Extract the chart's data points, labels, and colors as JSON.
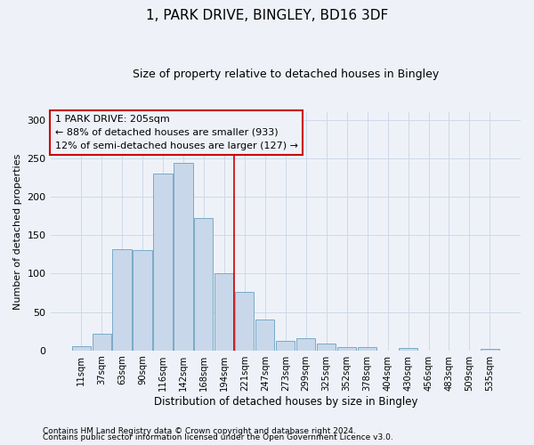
{
  "title": "1, PARK DRIVE, BINGLEY, BD16 3DF",
  "subtitle": "Size of property relative to detached houses in Bingley",
  "xlabel": "Distribution of detached houses by size in Bingley",
  "ylabel": "Number of detached properties",
  "categories": [
    "11sqm",
    "37sqm",
    "63sqm",
    "90sqm",
    "116sqm",
    "142sqm",
    "168sqm",
    "194sqm",
    "221sqm",
    "247sqm",
    "273sqm",
    "299sqm",
    "325sqm",
    "352sqm",
    "378sqm",
    "404sqm",
    "430sqm",
    "456sqm",
    "483sqm",
    "509sqm",
    "535sqm"
  ],
  "values": [
    5,
    22,
    132,
    131,
    230,
    244,
    172,
    101,
    76,
    40,
    12,
    16,
    9,
    4,
    4,
    0,
    3,
    0,
    0,
    0,
    2
  ],
  "bar_color": "#c8d8ea",
  "bar_edge_color": "#7aaac8",
  "grid_color": "#d0d8e8",
  "bg_color": "#eef2f8",
  "vline_x": 7.5,
  "vline_color": "#cc0000",
  "annotation_line1": "1 PARK DRIVE: 205sqm",
  "annotation_line2": "← 88% of detached houses are smaller (933)",
  "annotation_line3": "12% of semi-detached houses are larger (127) →",
  "annotation_box_color": "#cc0000",
  "footnote1": "Contains HM Land Registry data © Crown copyright and database right 2024.",
  "footnote2": "Contains public sector information licensed under the Open Government Licence v3.0.",
  "ylim": [
    0,
    310
  ],
  "yticks": [
    0,
    50,
    100,
    150,
    200,
    250,
    300
  ]
}
